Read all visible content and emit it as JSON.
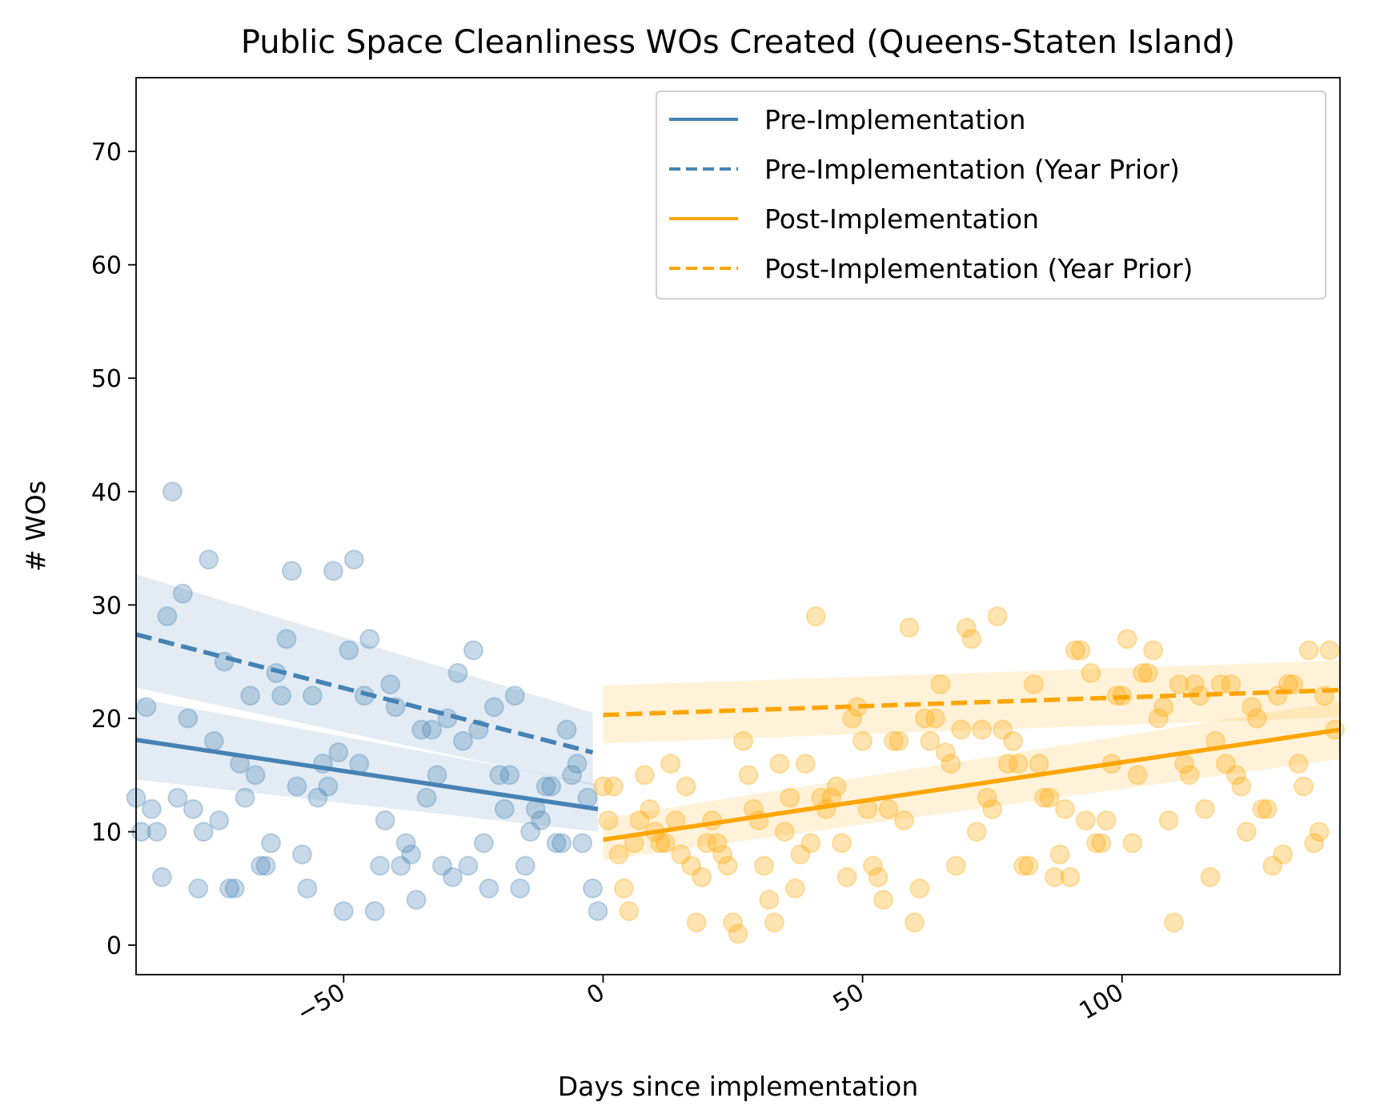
{
  "chart_data": {
    "type": "scatter",
    "title": "Public Space Cleanliness WOs Created (Queens-Staten Island)",
    "xlabel": "Days since implementation",
    "ylabel": "# WOs",
    "xlim": [
      -90,
      142
    ],
    "ylim": [
      -2.6,
      76.5
    ],
    "xticks": [
      -50,
      0,
      50,
      100
    ],
    "xtick_labels": [
      "−50",
      "0",
      "50",
      "100"
    ],
    "yticks": [
      0,
      10,
      20,
      30,
      40,
      50,
      60,
      70
    ],
    "ytick_labels": [
      "0",
      "10",
      "20",
      "30",
      "40",
      "50",
      "60",
      "70"
    ],
    "grid": false,
    "legend_position": "top-right",
    "colors": {
      "pre": "#4682b4",
      "post": "#ffa500"
    },
    "series": [
      {
        "name": "Pre-Implementation",
        "kind": "line",
        "style": "solid",
        "color": "#4682b4",
        "x": [
          -90,
          -1
        ],
        "y": [
          18.1,
          12
        ],
        "ci_lower": [
          14.6,
          10
        ],
        "ci_upper": [
          21.8,
          14.2
        ]
      },
      {
        "name": "Pre-Implementation (Year Prior)",
        "kind": "line",
        "style": "dashed",
        "color": "#4682b4",
        "x": [
          -90,
          -2
        ],
        "y": [
          27.4,
          17
        ],
        "ci_lower": [
          22.7,
          14.1
        ],
        "ci_upper": [
          32.7,
          20.5
        ]
      },
      {
        "name": "Post-Implementation",
        "kind": "line",
        "style": "solid",
        "color": "#ffa500",
        "x": [
          0,
          142
        ],
        "y": [
          9.3,
          19
        ],
        "ci_lower": [
          7.5,
          16.4
        ],
        "ci_upper": [
          11.2,
          21.5
        ]
      },
      {
        "name": "Post-Implementation (Year Prior)",
        "kind": "line",
        "style": "dashed",
        "color": "#ffa500",
        "x": [
          0,
          142
        ],
        "y": [
          20.3,
          22.5
        ],
        "ci_lower": [
          17.8,
          20.1
        ],
        "ci_upper": [
          22.9,
          25.1
        ]
      },
      {
        "kind": "scatter",
        "color": "#4682b4",
        "x": [
          -90,
          -89,
          -88,
          -87,
          -86,
          -85,
          -84,
          -83,
          -82,
          -81,
          -80,
          -79,
          -78,
          -77,
          -76,
          -75,
          -74,
          -73,
          -72,
          -71,
          -70,
          -69,
          -68,
          -67,
          -66,
          -65,
          -64,
          -63,
          -62,
          -61,
          -60,
          -59,
          -58,
          -57,
          -56,
          -55,
          -54,
          -53,
          -52,
          -51,
          -50,
          -49,
          -48,
          -47,
          -46,
          -45,
          -44,
          -43,
          -42,
          -41,
          -40,
          -39,
          -38,
          -37,
          -36,
          -35,
          -34,
          -33,
          -32,
          -31,
          -30,
          -29,
          -28,
          -27,
          -26,
          -25,
          -24,
          -23,
          -22,
          -21,
          -20,
          -19,
          -18,
          -17,
          -16,
          -15,
          -14,
          -13,
          -12,
          -11,
          -10,
          -9,
          -8,
          -7,
          -6,
          -5,
          -4,
          -3,
          -2,
          -1
        ],
        "y": [
          13,
          10,
          21,
          12,
          10,
          6,
          29,
          40,
          13,
          31,
          20,
          12,
          5,
          10,
          34,
          18,
          11,
          25,
          5,
          5,
          16,
          13,
          22,
          15,
          7,
          7,
          9,
          24,
          22,
          27,
          33,
          14,
          8,
          5,
          22,
          13,
          16,
          14,
          33,
          17,
          3,
          26,
          34,
          16,
          22,
          27,
          3,
          7,
          11,
          23,
          21,
          7,
          9,
          8,
          4,
          19,
          13,
          19,
          15,
          7,
          20,
          6,
          24,
          18,
          7,
          26,
          19,
          9,
          5,
          21,
          15,
          12,
          15,
          22,
          5,
          7,
          10,
          12,
          11,
          14,
          14,
          9,
          9,
          19,
          15,
          16,
          9,
          13,
          5,
          3
        ]
      },
      {
        "kind": "scatter",
        "color": "#ffa500",
        "x": [
          0,
          1,
          2,
          3,
          4,
          5,
          6,
          7,
          8,
          9,
          10,
          11,
          12,
          13,
          14,
          15,
          16,
          17,
          18,
          19,
          20,
          21,
          22,
          23,
          24,
          25,
          26,
          27,
          28,
          29,
          30,
          31,
          32,
          33,
          34,
          35,
          36,
          37,
          38,
          39,
          40,
          41,
          42,
          43,
          44,
          45,
          46,
          47,
          48,
          49,
          50,
          51,
          52,
          53,
          54,
          55,
          56,
          57,
          58,
          59,
          60,
          61,
          62,
          63,
          64,
          65,
          66,
          67,
          68,
          69,
          70,
          71,
          72,
          73,
          74,
          75,
          76,
          77,
          78,
          79,
          80,
          81,
          82,
          83,
          84,
          85,
          86,
          87,
          88,
          89,
          90,
          91,
          92,
          93,
          94,
          95,
          96,
          97,
          98,
          99,
          100,
          101,
          102,
          103,
          104,
          105,
          106,
          107,
          108,
          109,
          110,
          111,
          112,
          113,
          114,
          115,
          116,
          117,
          118,
          119,
          120,
          121,
          122,
          123,
          124,
          125,
          126,
          127,
          128,
          129,
          130,
          131,
          132,
          133,
          134,
          135,
          136,
          137,
          138,
          139,
          140,
          141
        ],
        "y": [
          14,
          11,
          14,
          8,
          5,
          3,
          9,
          11,
          15,
          12,
          10,
          9,
          9,
          16,
          11,
          8,
          14,
          7,
          2,
          6,
          9,
          11,
          9,
          8,
          7,
          2,
          1,
          18,
          15,
          12,
          11,
          7,
          4,
          2,
          16,
          10,
          13,
          5,
          8,
          16,
          9,
          29,
          13,
          12,
          13,
          14,
          9,
          6,
          20,
          21,
          18,
          12,
          7,
          6,
          4,
          12,
          18,
          18,
          11,
          28,
          2,
          5,
          20,
          18,
          20,
          23,
          17,
          16,
          7,
          19,
          28,
          27,
          10,
          19,
          13,
          12,
          29,
          19,
          16,
          18,
          16,
          7,
          7,
          23,
          16,
          13,
          13,
          6,
          8,
          12,
          6,
          26,
          26,
          11,
          24,
          9,
          9,
          11,
          16,
          22,
          22,
          27,
          9,
          15,
          24,
          24,
          26,
          20,
          21,
          11,
          2,
          23,
          16,
          15,
          23,
          22,
          12,
          6,
          18,
          23,
          16,
          23,
          15,
          14,
          10,
          21,
          20,
          12,
          12,
          7,
          22,
          8,
          23,
          23,
          16,
          14,
          26,
          9,
          10,
          22,
          26,
          19
        ]
      }
    ]
  }
}
